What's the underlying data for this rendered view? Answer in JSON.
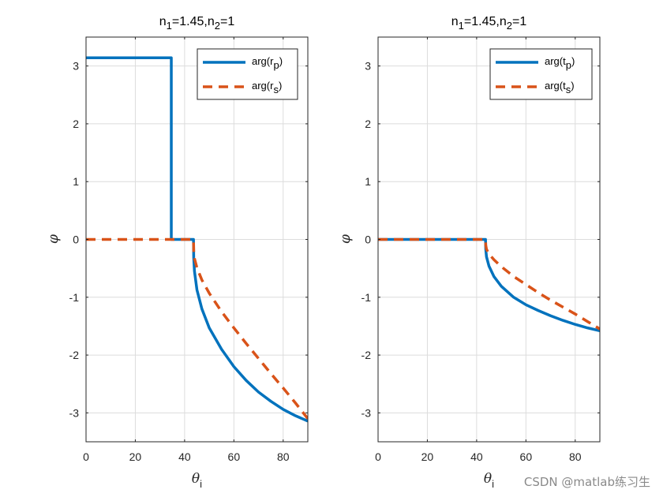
{
  "chart_data": [
    {
      "type": "line",
      "title": "n1=1.45,n2=1",
      "title_parts": {
        "n": "n",
        "sub1": "1",
        "mid": "=1.45,n",
        "sub2": "2",
        "end": "=1"
      },
      "xlabel": "θi",
      "xlabel_parts": {
        "main": "θ",
        "sub": "i"
      },
      "ylabel": "φ",
      "xlim": [
        0,
        90
      ],
      "ylim": [
        -3.5,
        3.5
      ],
      "xticks": [
        0,
        20,
        40,
        60,
        80
      ],
      "yticks": [
        3,
        2,
        1,
        0,
        -1,
        -2,
        -3
      ],
      "grid": true,
      "legend": {
        "placement": "top-right"
      },
      "series": [
        {
          "name": "arg(rp)",
          "label_parts": {
            "pre": "arg(r",
            "sub": "p",
            "post": ")"
          },
          "color": "#0072BD",
          "style": "solid",
          "x": [
            0,
            34.6,
            34.6,
            43.6,
            43.7,
            44.0,
            45,
            47,
            50,
            55,
            60,
            65,
            70,
            75,
            80,
            85,
            90
          ],
          "y": [
            3.1416,
            3.1416,
            0,
            0,
            -0.32,
            -0.55,
            -0.87,
            -1.2,
            -1.53,
            -1.9,
            -2.2,
            -2.44,
            -2.64,
            -2.8,
            -2.94,
            -3.05,
            -3.1416
          ]
        },
        {
          "name": "arg(rs)",
          "label_parts": {
            "pre": "arg(r",
            "sub": "s",
            "post": ")"
          },
          "color": "#D95319",
          "style": "dashed",
          "x": [
            0,
            43.6,
            43.7,
            44.0,
            45,
            47,
            50,
            55,
            60,
            65,
            70,
            75,
            80,
            85,
            90
          ],
          "y": [
            0,
            0,
            -0.2,
            -0.33,
            -0.49,
            -0.7,
            -0.93,
            -1.25,
            -1.53,
            -1.8,
            -2.06,
            -2.32,
            -2.57,
            -2.83,
            -3.1
          ]
        }
      ]
    },
    {
      "type": "line",
      "title": "n1=1.45,n2=1",
      "title_parts": {
        "n": "n",
        "sub1": "1",
        "mid": "=1.45,n",
        "sub2": "2",
        "end": "=1"
      },
      "xlabel": "θi",
      "xlabel_parts": {
        "main": "θ",
        "sub": "i"
      },
      "ylabel": "φ",
      "xlim": [
        0,
        90
      ],
      "ylim": [
        -3.5,
        3.5
      ],
      "xticks": [
        0,
        20,
        40,
        60,
        80
      ],
      "yticks": [
        3,
        2,
        1,
        0,
        -1,
        -2,
        -3
      ],
      "grid": true,
      "legend": {
        "placement": "top-right"
      },
      "series": [
        {
          "name": "arg(tp)",
          "label_parts": {
            "pre": "arg(t",
            "sub": "p",
            "post": ")"
          },
          "color": "#0072BD",
          "style": "solid",
          "x": [
            0,
            43.6,
            43.7,
            44.0,
            45,
            47,
            50,
            55,
            60,
            65,
            70,
            75,
            80,
            85,
            90
          ],
          "y": [
            0,
            0,
            -0.17,
            -0.3,
            -0.46,
            -0.64,
            -0.81,
            -1.0,
            -1.13,
            -1.23,
            -1.32,
            -1.4,
            -1.47,
            -1.53,
            -1.58
          ]
        },
        {
          "name": "arg(ts)",
          "label_parts": {
            "pre": "arg(t",
            "sub": "s",
            "post": ")"
          },
          "color": "#D95319",
          "style": "dashed",
          "x": [
            0,
            43.6,
            43.7,
            44.0,
            45,
            47,
            50,
            55,
            60,
            65,
            70,
            75,
            80,
            85,
            90
          ],
          "y": [
            0,
            0,
            -0.1,
            -0.17,
            -0.25,
            -0.35,
            -0.47,
            -0.64,
            -0.78,
            -0.92,
            -1.05,
            -1.17,
            -1.29,
            -1.42,
            -1.55
          ]
        }
      ]
    }
  ],
  "watermark": "CSDN @matlab练习生"
}
